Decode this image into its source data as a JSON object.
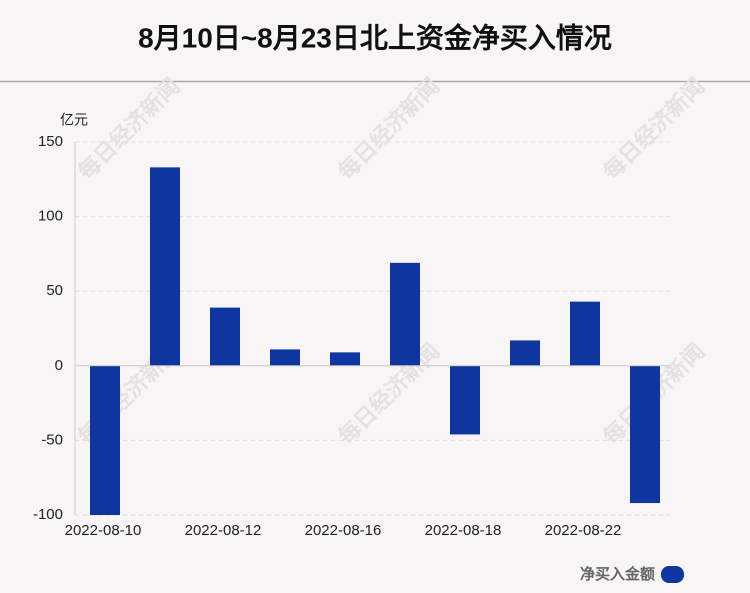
{
  "chart_data": {
    "type": "bar",
    "title": "8月10日~8月23日北上资金净买入情况",
    "y_unit": "亿元",
    "watermark": "每日经济新闻",
    "categories": [
      "2022-08-10",
      null,
      "2022-08-12",
      null,
      "2022-08-16",
      null,
      "2022-08-18",
      null,
      "2022-08-22",
      null
    ],
    "series": [
      {
        "name": "净买入金额",
        "color": "#0f35a0",
        "values": [
          -100,
          133,
          39,
          11,
          9,
          69,
          -46,
          17,
          43,
          -92
        ]
      }
    ],
    "ylim": [
      -100,
      150
    ],
    "yticks": [
      -100,
      -50,
      0,
      50,
      100,
      150
    ],
    "grid": true
  }
}
